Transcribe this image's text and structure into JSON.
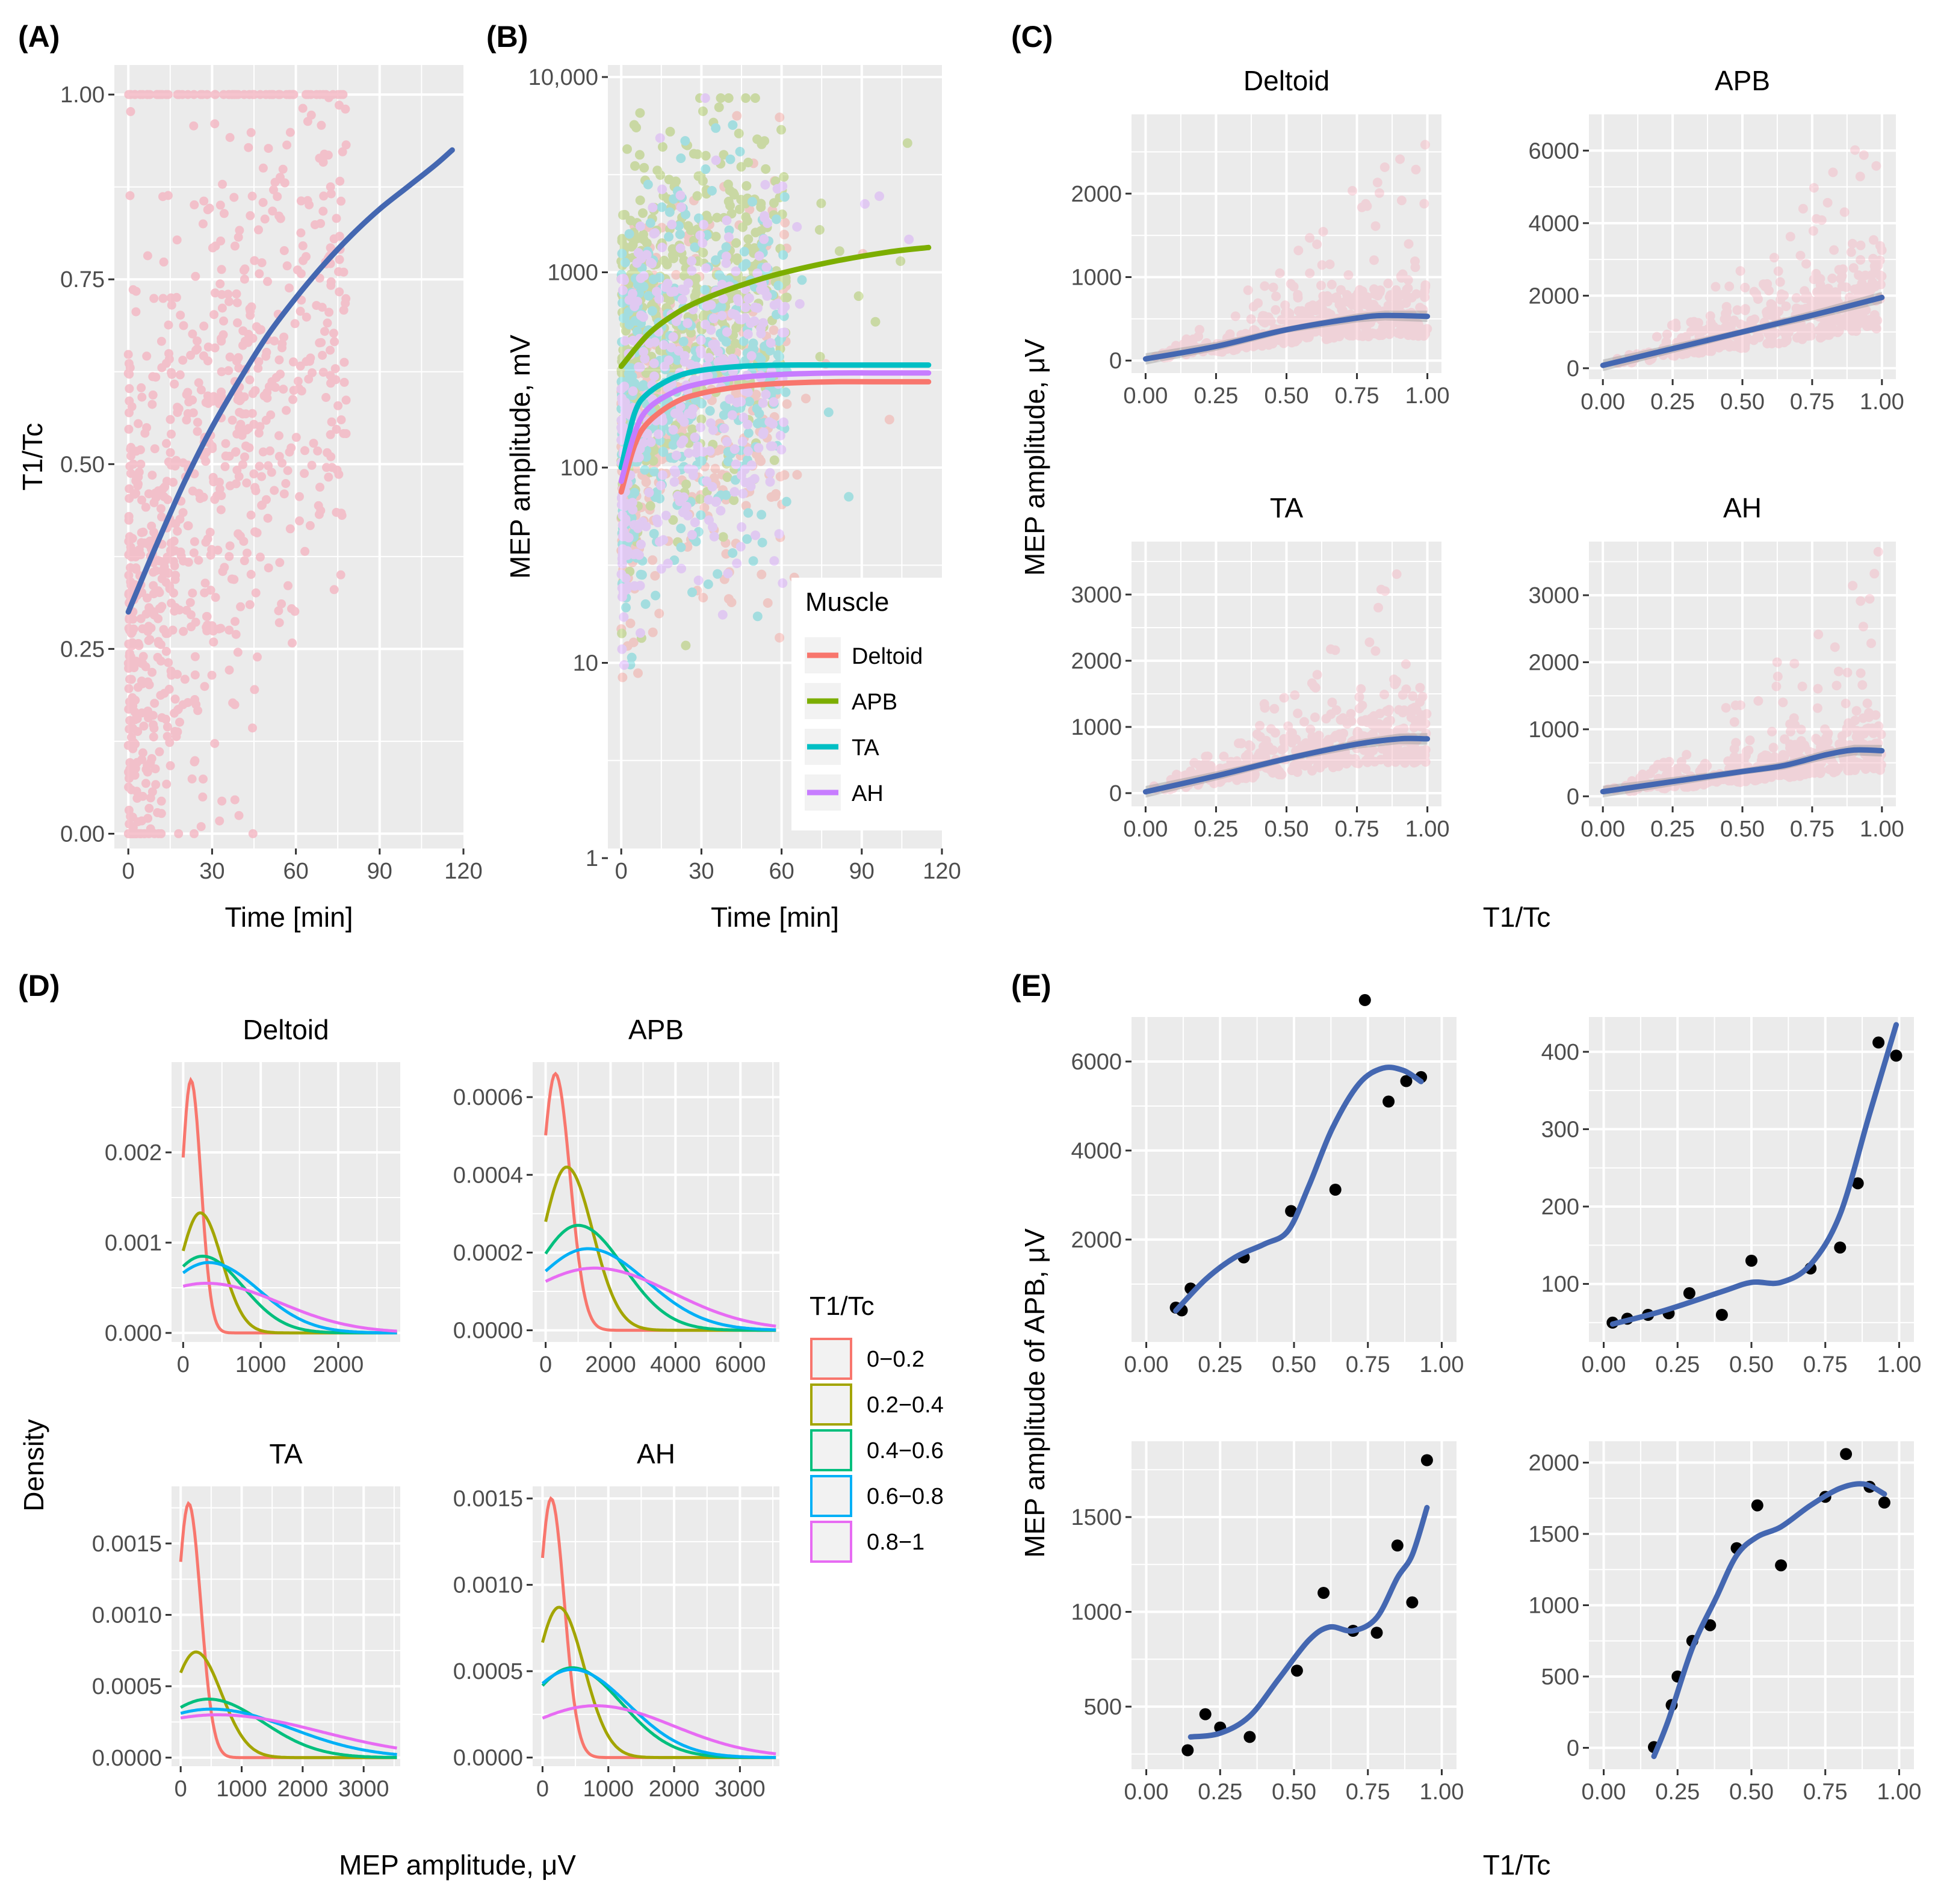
{
  "figure": {
    "background": "#ffffff",
    "panel_bg": "#ebebeb",
    "grid_color": "#ffffff",
    "point_color": "#f4b6c2",
    "fit_color": "#4467b1"
  },
  "shared_labels": {
    "c_xlabel": "T1/Tc",
    "c_ylabel": "MEP amplitude, μV",
    "d_xlabel": "MEP amplitude, μV",
    "d_ylabel": "Density",
    "e_xlabel": "T1/Tc",
    "e_ylabel": "MEP amplitude of APB, μV"
  },
  "chart_data": [
    {
      "id": "A",
      "panel_label": "(A)",
      "type": "scatter",
      "xlabel": "Time [min]",
      "ylabel": "T1/Tc",
      "xlim": [
        -5,
        120
      ],
      "ylim": [
        -0.02,
        1.04
      ],
      "xticks": [
        "0",
        "30",
        "60",
        "90",
        "120"
      ],
      "yticks": [
        "0.00",
        "0.25",
        "0.50",
        "0.75",
        "1.00"
      ],
      "fit": {
        "x": [
          0,
          10,
          20,
          30,
          40,
          50,
          60,
          70,
          80,
          90,
          100,
          110,
          116
        ],
        "y": [
          0.3,
          0.39,
          0.475,
          0.55,
          0.615,
          0.675,
          0.725,
          0.77,
          0.81,
          0.845,
          0.875,
          0.905,
          0.925
        ]
      }
    },
    {
      "id": "B",
      "panel_label": "(B)",
      "type": "scatter",
      "xlabel": "Time [min]",
      "ylabel": "MEP amplitude, mV",
      "yscale": "log",
      "xlim": [
        -5,
        120
      ],
      "ylim": [
        1,
        10000
      ],
      "xticks": [
        "0",
        "30",
        "60",
        "90",
        "120"
      ],
      "yticks": [
        "1",
        "10",
        "100",
        "1000",
        "10,000"
      ],
      "legend": {
        "title": "Muscle",
        "position": "bottom-right"
      },
      "series": [
        {
          "name": "Deltoid",
          "color": "#f8766d",
          "x": [
            0,
            5,
            10,
            20,
            30,
            45,
            60,
            80,
            100,
            115
          ],
          "y": [
            75,
            130,
            170,
            215,
            240,
            260,
            270,
            275,
            275,
            275
          ]
        },
        {
          "name": "APB",
          "color": "#7cae00",
          "x": [
            0,
            10,
            20,
            30,
            45,
            60,
            80,
            100,
            115
          ],
          "y": [
            330,
            480,
            610,
            720,
            860,
            990,
            1140,
            1270,
            1340
          ]
        },
        {
          "name": "TA",
          "color": "#00bfc4",
          "x": [
            0,
            5,
            10,
            20,
            30,
            45,
            60,
            80,
            100,
            115
          ],
          "y": [
            100,
            190,
            240,
            290,
            315,
            330,
            335,
            335,
            335,
            335
          ]
        },
        {
          "name": "AH",
          "color": "#c77cff",
          "x": [
            0,
            5,
            10,
            20,
            30,
            45,
            60,
            80,
            100,
            115
          ],
          "y": [
            85,
            150,
            200,
            245,
            270,
            290,
            300,
            305,
            305,
            305
          ]
        }
      ]
    },
    {
      "id": "C",
      "panel_label": "(C)",
      "type": "scatter",
      "xlabel": "T1/Tc",
      "ylabel": "MEP amplitude, μV",
      "facets": [
        {
          "title": "Deltoid",
          "ylim": [
            -150,
            2950
          ],
          "yticks": [
            0,
            1000,
            2000
          ],
          "x": [
            0,
            0.25,
            0.5,
            0.75,
            0.85,
            1
          ],
          "y": [
            20,
            170,
            370,
            510,
            540,
            530
          ]
        },
        {
          "title": "APB",
          "ylim": [
            -300,
            7000
          ],
          "yticks": [
            0,
            2000,
            4000,
            6000
          ],
          "x": [
            0,
            0.25,
            0.5,
            0.75,
            1
          ],
          "y": [
            80,
            540,
            1000,
            1460,
            1950
          ]
        },
        {
          "title": "TA",
          "ylim": [
            -200,
            3800
          ],
          "yticks": [
            0,
            1000,
            2000,
            3000
          ],
          "x": [
            0,
            0.25,
            0.5,
            0.75,
            0.9,
            1
          ],
          "y": [
            20,
            260,
            520,
            740,
            820,
            820
          ]
        },
        {
          "title": "AH",
          "ylim": [
            -150,
            3800
          ],
          "yticks": [
            0,
            1000,
            2000,
            3000
          ],
          "x": [
            0,
            0.25,
            0.5,
            0.65,
            0.8,
            0.9,
            1
          ],
          "y": [
            70,
            220,
            370,
            460,
            620,
            690,
            680
          ]
        }
      ]
    },
    {
      "id": "D",
      "panel_label": "(D)",
      "type": "line",
      "xlabel": "MEP amplitude, μV",
      "ylabel": "Density",
      "legend": {
        "title": "T1/Tc",
        "labels": [
          "0−0.2",
          "0.2−0.4",
          "0.4−0.6",
          "0.6−0.8",
          "0.8−1"
        ],
        "colors": [
          "#f8766d",
          "#a3a500",
          "#00bf7d",
          "#00b0f6",
          "#e76bf3"
        ]
      },
      "facets": [
        {
          "title": "Deltoid",
          "xlim": [
            -150,
            2800
          ],
          "ylim": [
            -0.0001,
            0.003
          ],
          "xticks": [
            0,
            1000,
            2000
          ],
          "yticks": [
            "0.000",
            "0.001",
            "0.002"
          ],
          "peaks": [
            [
              100,
              0.0028,
              130
            ],
            [
              220,
              0.00133,
              280
            ],
            [
              250,
              0.00085,
              520
            ],
            [
              330,
              0.00078,
              650
            ],
            [
              300,
              0.00055,
              950
            ]
          ]
        },
        {
          "title": "APB",
          "xlim": [
            -400,
            7200
          ],
          "ylim": [
            -3e-05,
            0.00069
          ],
          "xticks": [
            0,
            2000,
            4000,
            6000
          ],
          "yticks": [
            "0.0000",
            "0.0002",
            "0.0004",
            "0.0006"
          ],
          "peaks": [
            [
              300,
              0.00066,
              450
            ],
            [
              650,
              0.00042,
              800
            ],
            [
              1000,
              0.00027,
              1400
            ],
            [
              1300,
              0.00021,
              1800
            ],
            [
              1500,
              0.00016,
              2400
            ]
          ]
        },
        {
          "title": "TA",
          "xlim": [
            -150,
            3600
          ],
          "ylim": [
            -6e-05,
            0.0019
          ],
          "xticks": [
            0,
            1000,
            2000,
            3000
          ],
          "yticks": [
            "0.0000",
            "0.0005",
            "0.0010",
            "0.0015"
          ],
          "peaks": [
            [
              130,
              0.00178,
              200
            ],
            [
              250,
              0.00074,
              420
            ],
            [
              450,
              0.00041,
              900
            ],
            [
              500,
              0.00034,
              1300
            ],
            [
              600,
              0.0003,
              1700
            ]
          ]
        },
        {
          "title": "AH",
          "xlim": [
            -150,
            3600
          ],
          "ylim": [
            -5e-05,
            0.00157
          ],
          "xticks": [
            0,
            1000,
            2000,
            3000
          ],
          "yticks": [
            "0.0000",
            "0.0005",
            "0.0010",
            "0.0015"
          ],
          "peaks": [
            [
              130,
              0.0015,
              200
            ],
            [
              250,
              0.00087,
              380
            ],
            [
              450,
              0.00052,
              750
            ],
            [
              450,
              0.00051,
              850
            ],
            [
              800,
              0.0003,
              1200
            ]
          ]
        }
      ]
    },
    {
      "id": "E",
      "panel_label": "(E)",
      "type": "scatter",
      "xlabel": "T1/Tc",
      "ylabel": "MEP amplitude of APB, μV",
      "facets": [
        {
          "ylim": [
            -300,
            7000
          ],
          "yticks": [
            2000,
            4000,
            6000
          ],
          "points": [
            [
              0.1,
              470
            ],
            [
              0.12,
              410
            ],
            [
              0.15,
              900
            ],
            [
              0.33,
              1600
            ],
            [
              0.49,
              2640
            ],
            [
              0.64,
              3120
            ],
            [
              0.74,
              7380
            ],
            [
              0.82,
              5100
            ],
            [
              0.88,
              5560
            ],
            [
              0.93,
              5650
            ]
          ],
          "fit": [
            [
              0.1,
              400
            ],
            [
              0.2,
              1100
            ],
            [
              0.3,
              1600
            ],
            [
              0.4,
              1900
            ],
            [
              0.48,
              2200
            ],
            [
              0.55,
              3200
            ],
            [
              0.63,
              4500
            ],
            [
              0.72,
              5500
            ],
            [
              0.8,
              5850
            ],
            [
              0.87,
              5800
            ],
            [
              0.93,
              5550
            ]
          ]
        },
        {
          "ylim": [
            25,
            445
          ],
          "yticks": [
            100,
            200,
            300,
            400
          ],
          "points": [
            [
              0.03,
              50
            ],
            [
              0.08,
              55
            ],
            [
              0.15,
              60
            ],
            [
              0.22,
              62
            ],
            [
              0.29,
              88
            ],
            [
              0.4,
              60
            ],
            [
              0.5,
              130
            ],
            [
              0.7,
              120
            ],
            [
              0.8,
              147
            ],
            [
              0.86,
              230
            ],
            [
              0.93,
              412
            ],
            [
              0.99,
              395
            ]
          ],
          "fit": [
            [
              0.03,
              48
            ],
            [
              0.2,
              65
            ],
            [
              0.4,
              90
            ],
            [
              0.5,
              102
            ],
            [
              0.6,
              102
            ],
            [
              0.7,
              125
            ],
            [
              0.8,
              190
            ],
            [
              0.9,
              320
            ],
            [
              0.99,
              435
            ]
          ]
        },
        {
          "ylim": [
            170,
            1900
          ],
          "yticks": [
            500,
            1000,
            1500
          ],
          "points": [
            [
              0.14,
              270
            ],
            [
              0.2,
              460
            ],
            [
              0.25,
              390
            ],
            [
              0.35,
              340
            ],
            [
              0.51,
              690
            ],
            [
              0.6,
              1100
            ],
            [
              0.7,
              900
            ],
            [
              0.78,
              890
            ],
            [
              0.85,
              1350
            ],
            [
              0.9,
              1050
            ],
            [
              0.95,
              1800
            ]
          ],
          "fit": [
            [
              0.15,
              340
            ],
            [
              0.25,
              360
            ],
            [
              0.35,
              450
            ],
            [
              0.45,
              650
            ],
            [
              0.55,
              850
            ],
            [
              0.62,
              920
            ],
            [
              0.7,
              900
            ],
            [
              0.78,
              970
            ],
            [
              0.85,
              1180
            ],
            [
              0.9,
              1300
            ],
            [
              0.95,
              1550
            ]
          ]
        },
        {
          "ylim": [
            -150,
            2150
          ],
          "yticks": [
            0,
            500,
            1000,
            1500,
            2000
          ],
          "points": [
            [
              0.17,
              5
            ],
            [
              0.23,
              300
            ],
            [
              0.25,
              500
            ],
            [
              0.3,
              750
            ],
            [
              0.36,
              860
            ],
            [
              0.45,
              1400
            ],
            [
              0.52,
              1700
            ],
            [
              0.6,
              1280
            ],
            [
              0.75,
              1760
            ],
            [
              0.82,
              2060
            ],
            [
              0.9,
              1830
            ],
            [
              0.95,
              1720
            ]
          ],
          "fit": [
            [
              0.17,
              -60
            ],
            [
              0.22,
              200
            ],
            [
              0.3,
              700
            ],
            [
              0.38,
              1050
            ],
            [
              0.45,
              1350
            ],
            [
              0.52,
              1480
            ],
            [
              0.6,
              1550
            ],
            [
              0.7,
              1700
            ],
            [
              0.8,
              1820
            ],
            [
              0.88,
              1850
            ],
            [
              0.95,
              1780
            ]
          ]
        }
      ]
    }
  ]
}
